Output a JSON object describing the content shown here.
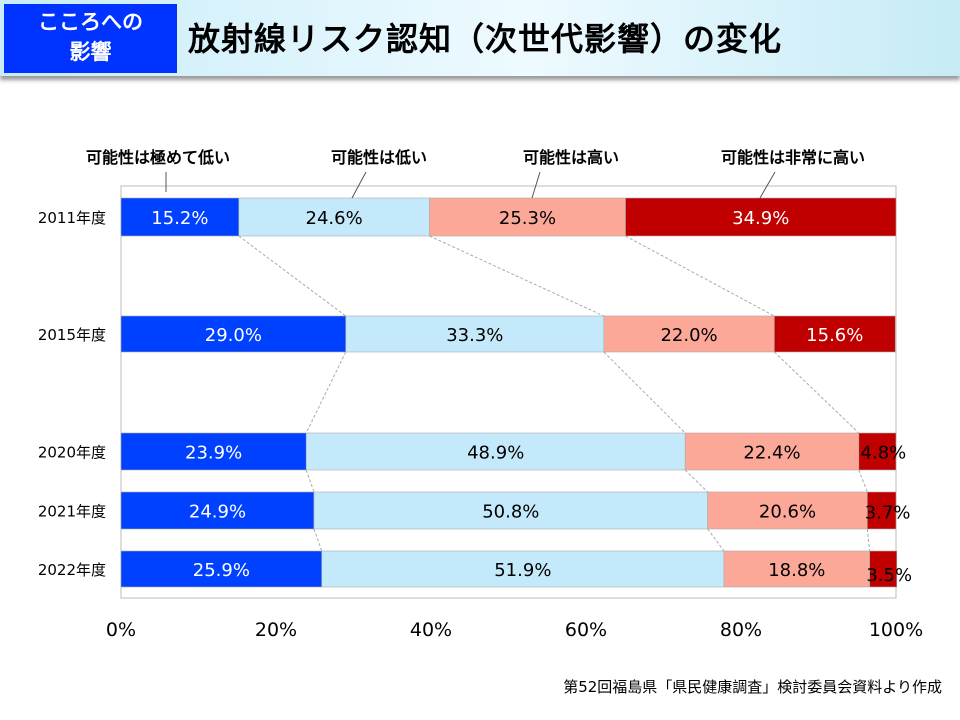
{
  "header": {
    "badge": "こころへの\n影響",
    "badge_line1": "こころへの",
    "badge_line2": "影響",
    "title": "放射線リスク認知（次世代影響）の変化"
  },
  "source": "第52回福島県「県民健康調査」検討委員会資料より作成",
  "chart_data": {
    "type": "bar",
    "orientation": "horizontal-stacked-100",
    "categories": [
      "2011年度",
      "2015年度",
      "2020年度",
      "2021年度",
      "2022年度"
    ],
    "series": [
      {
        "name": "可能性は極めて低い",
        "color": "#0040ff",
        "values": [
          15.2,
          29.0,
          23.9,
          24.9,
          25.9
        ]
      },
      {
        "name": "可能性は低い",
        "color": "#c4e9fb",
        "values": [
          24.6,
          33.3,
          48.9,
          50.8,
          51.9
        ]
      },
      {
        "name": "可能性は高い",
        "color": "#fca899",
        "values": [
          25.3,
          22.0,
          22.4,
          20.6,
          18.8
        ]
      },
      {
        "name": "可能性は非常に高い",
        "color": "#c00000",
        "values": [
          34.9,
          15.6,
          4.8,
          3.7,
          3.5
        ]
      }
    ],
    "xlim": [
      0,
      100
    ],
    "xticks": [
      "0%",
      "20%",
      "40%",
      "60%",
      "80%",
      "100%"
    ],
    "legend": "top",
    "grid": false
  }
}
